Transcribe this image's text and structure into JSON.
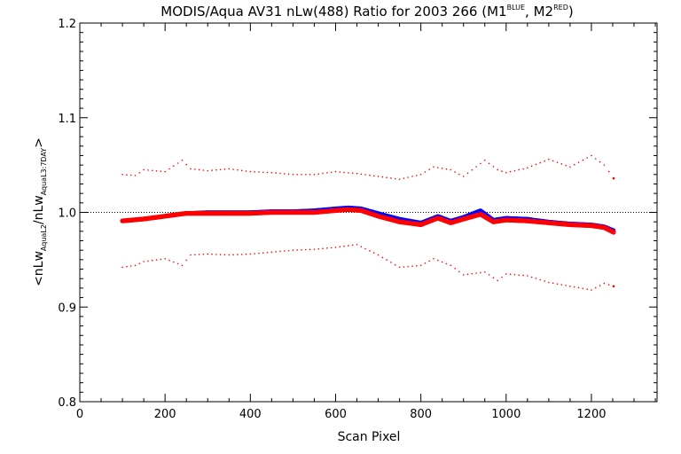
{
  "chart_data": {
    "type": "scatter",
    "title_parts": {
      "main": "MODIS/Aqua AV31 nLw(488) Ratio for 2003 266 (M1",
      "sup1": "BLUE",
      "mid": ", M2",
      "sup2": "RED",
      "end": ")"
    },
    "xlabel": "Scan Pixel",
    "ylabel_parts": {
      "a": "<nLw",
      "sub1": "AquaL2",
      "b": "/nLw",
      "sub2": "AquaL3:7DAY",
      "c": ">"
    },
    "xlim": [
      0,
      1354
    ],
    "ylim": [
      0.8,
      1.2
    ],
    "xticks": [
      0,
      200,
      400,
      600,
      800,
      1000,
      1200
    ],
    "yticks": [
      0.8,
      0.9,
      1.0,
      1.1,
      1.2
    ],
    "xtick_labels": [
      "0",
      "200",
      "400",
      "600",
      "800",
      "1000",
      "1200"
    ],
    "ytick_labels": [
      "0.8",
      "0.9",
      "1.0",
      "1.1",
      "1.2"
    ],
    "reference_line": 1.0,
    "colors": {
      "m1": "#0000ff",
      "m2": "#ff0000",
      "axes": "#000000"
    },
    "series": [
      {
        "x": [
          100,
          150,
          200,
          250,
          300,
          350,
          400,
          450,
          500,
          550,
          600,
          630,
          660,
          700,
          750,
          800,
          840,
          870,
          900,
          940,
          970,
          1000,
          1050,
          1100,
          1150,
          1200,
          1230,
          1252
        ],
        "y": [
          0.991,
          0.993,
          0.996,
          0.999,
          1.0,
          1.0,
          1.0,
          1.001,
          1.001,
          1.002,
          1.004,
          1.005,
          1.004,
          0.999,
          0.993,
          0.989,
          0.996,
          0.991,
          0.995,
          1.002,
          0.992,
          0.994,
          0.993,
          0.99,
          0.988,
          0.987,
          0.985,
          0.981
        ]
      },
      {
        "x": [
          100,
          150,
          200,
          250,
          300,
          350,
          400,
          450,
          500,
          550,
          600,
          630,
          660,
          700,
          750,
          800,
          840,
          870,
          900,
          940,
          970,
          1000,
          1050,
          1100,
          1150,
          1200,
          1230,
          1252
        ],
        "y": [
          0.991,
          0.993,
          0.996,
          0.999,
          0.999,
          0.999,
          0.999,
          1.0,
          1.0,
          1.0,
          1.002,
          1.003,
          1.002,
          0.996,
          0.99,
          0.987,
          0.994,
          0.989,
          0.993,
          0.998,
          0.99,
          0.992,
          0.991,
          0.989,
          0.987,
          0.986,
          0.984,
          0.979
        ]
      },
      {
        "x": [
          100,
          130,
          150,
          200,
          240,
          260,
          300,
          350,
          400,
          450,
          500,
          550,
          600,
          650,
          700,
          750,
          800,
          830,
          870,
          900,
          950,
          980,
          1000,
          1050,
          1100,
          1150,
          1200,
          1230,
          1252
        ],
        "y": [
          1.04,
          1.039,
          1.045,
          1.043,
          1.055,
          1.046,
          1.044,
          1.046,
          1.043,
          1.042,
          1.04,
          1.04,
          1.043,
          1.041,
          1.038,
          1.035,
          1.04,
          1.048,
          1.045,
          1.038,
          1.055,
          1.045,
          1.042,
          1.047,
          1.056,
          1.048,
          1.06,
          1.05,
          1.036
        ]
      },
      {
        "x": [
          100,
          130,
          150,
          200,
          240,
          260,
          300,
          350,
          400,
          450,
          500,
          550,
          600,
          650,
          700,
          750,
          800,
          830,
          870,
          900,
          950,
          980,
          1000,
          1050,
          1100,
          1150,
          1200,
          1230,
          1252
        ],
        "y": [
          0.942,
          0.944,
          0.948,
          0.951,
          0.944,
          0.955,
          0.956,
          0.955,
          0.956,
          0.958,
          0.96,
          0.961,
          0.963,
          0.966,
          0.955,
          0.942,
          0.944,
          0.951,
          0.944,
          0.934,
          0.937,
          0.928,
          0.935,
          0.933,
          0.926,
          0.922,
          0.918,
          0.925,
          0.922
        ]
      }
    ]
  }
}
